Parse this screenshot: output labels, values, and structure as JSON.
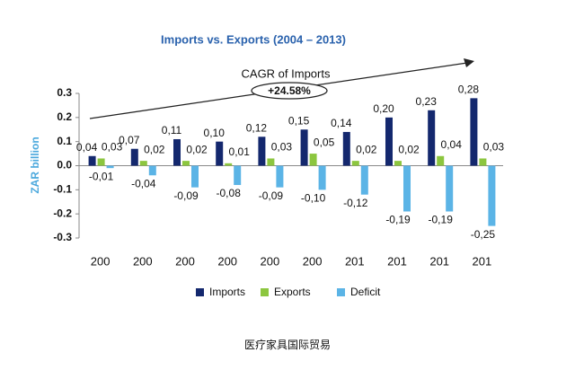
{
  "chart_data": {
    "type": "bar",
    "title": "Imports vs. Exports (2004 – 2013)",
    "annotation": "CAGR of Imports",
    "annotation_value": "+24.58%",
    "y_label": "ZAR billion",
    "caption": "医疗家具国际贸易",
    "categories": [
      "200",
      "200",
      "200",
      "200",
      "200",
      "200",
      "201",
      "201",
      "201",
      "201"
    ],
    "series": [
      {
        "name": "Imports",
        "color": "#14286e",
        "values": [
          0.04,
          0.07,
          0.11,
          0.1,
          0.12,
          0.15,
          0.14,
          0.2,
          0.23,
          0.28
        ],
        "value_labels": [
          "0,04",
          "0,07",
          "0,11",
          "0,10",
          "0,12",
          "0,15",
          "0,14",
          "0,20",
          "0,23",
          "0,28"
        ]
      },
      {
        "name": "Exports",
        "color": "#8cc63f",
        "values": [
          0.03,
          0.02,
          0.02,
          0.01,
          0.03,
          0.05,
          0.02,
          0.02,
          0.04,
          0.03
        ],
        "value_labels": [
          "0,03",
          "0,02",
          "0,02",
          "0,01",
          "0,03",
          "0,05",
          "0,02",
          "0,02",
          "0,04",
          "0,03"
        ]
      },
      {
        "name": "Deficit",
        "color": "#5bb4e6",
        "values": [
          -0.01,
          -0.04,
          -0.09,
          -0.08,
          -0.09,
          -0.1,
          -0.12,
          -0.19,
          -0.19,
          -0.25
        ],
        "value_labels": [
          "-0,01",
          "-0,04",
          "-0,09",
          "-0,08",
          "-0,09",
          "-0,10",
          "-0,12",
          "-0,19",
          "-0,19",
          "-0,25"
        ]
      }
    ],
    "ylim": [
      -0.3,
      0.3
    ],
    "yticks": [
      -0.3,
      -0.2,
      -0.1,
      {
        "value": 0,
        "label": "0.0"
      },
      0.1,
      0.2,
      0.3
    ]
  }
}
